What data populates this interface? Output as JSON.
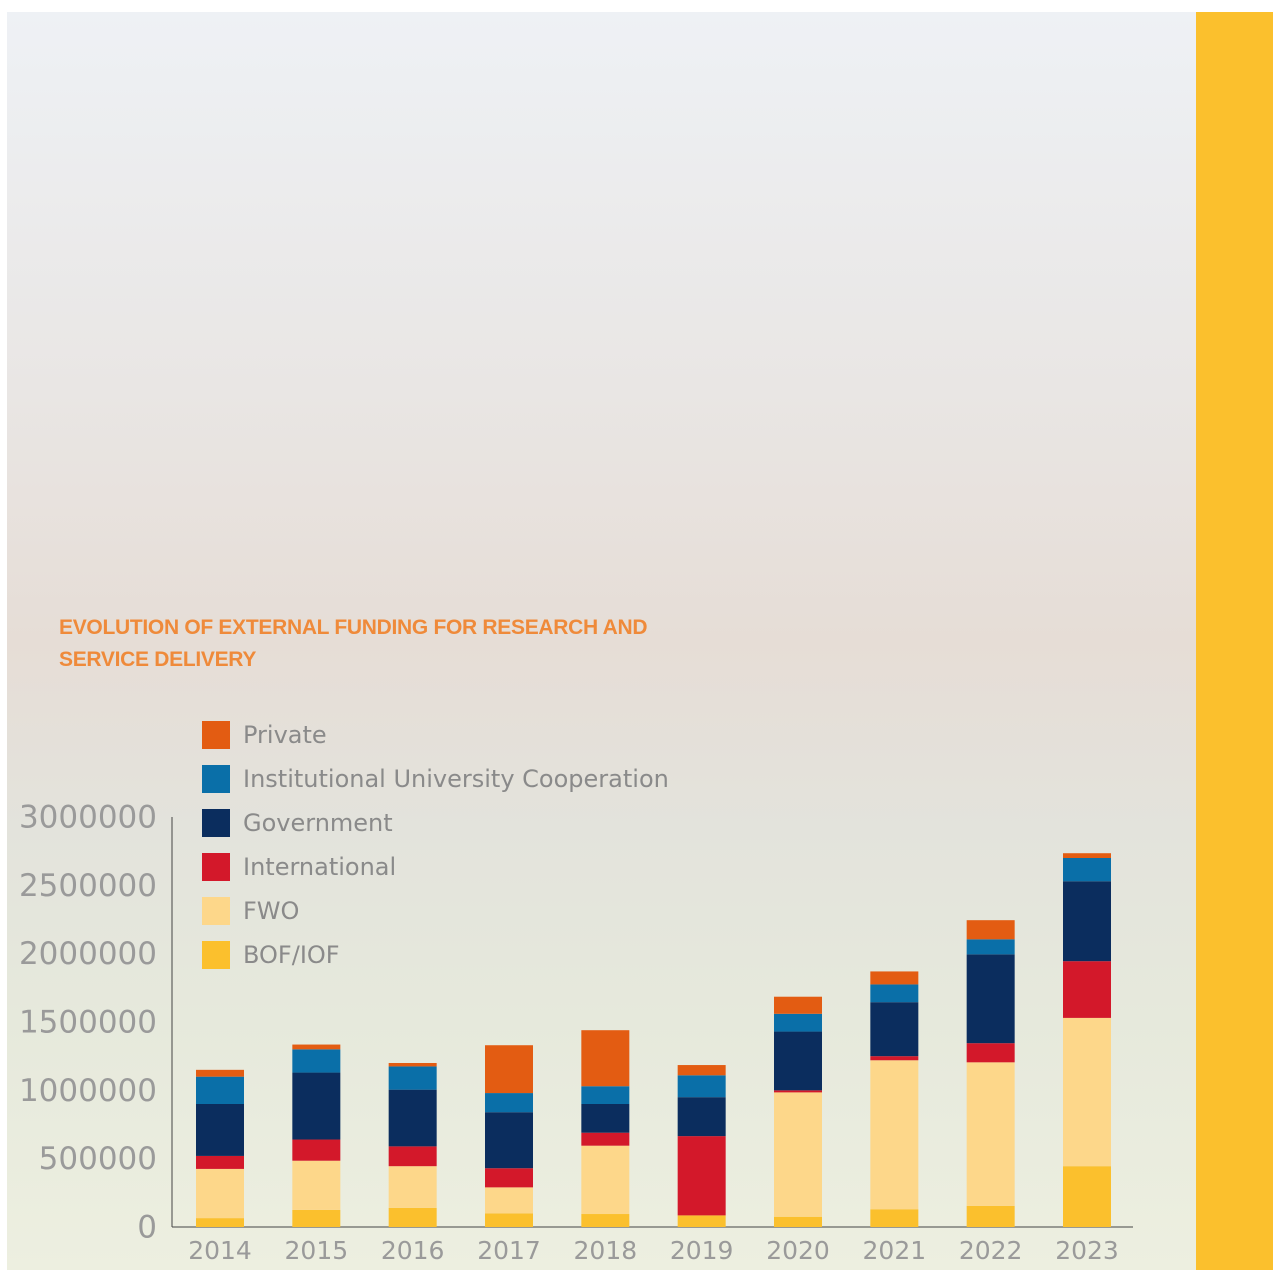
{
  "chart_data": {
    "type": "stacked-bar",
    "title": "EVOLUTION OF EXTERNAL FUNDING FOR RESEARCH AND SERVICE DELIVERY",
    "categories": [
      "2014",
      "2015",
      "2016",
      "2017",
      "2018",
      "2019",
      "2020",
      "2021",
      "2022",
      "2023"
    ],
    "series": [
      {
        "name": "BOF/IOF",
        "color": "#fbc02d",
        "values": [
          65000,
          125000,
          140000,
          100000,
          95000,
          85000,
          75000,
          130000,
          155000,
          445000
        ]
      },
      {
        "name": "FWO",
        "color": "#fdd78a",
        "values": [
          360000,
          360000,
          305000,
          190000,
          500000,
          0,
          910000,
          1090000,
          1050000,
          1085000
        ]
      },
      {
        "name": "International",
        "color": "#d3182a",
        "values": [
          95000,
          155000,
          145000,
          140000,
          95000,
          580000,
          15000,
          30000,
          140000,
          415000
        ]
      },
      {
        "name": "Government",
        "color": "#0b2d5e",
        "values": [
          380000,
          490000,
          415000,
          410000,
          210000,
          285000,
          430000,
          395000,
          650000,
          585000
        ]
      },
      {
        "name": "Institutional University Cooperation",
        "color": "#0a6fa8",
        "values": [
          200000,
          170000,
          170000,
          140000,
          130000,
          160000,
          130000,
          130000,
          110000,
          170000
        ]
      },
      {
        "name": "Private",
        "color": "#e35c12",
        "values": [
          50000,
          35000,
          25000,
          350000,
          410000,
          75000,
          125000,
          95000,
          140000,
          35000
        ]
      }
    ],
    "ylim": [
      0,
      3000000
    ],
    "yticks": [
      0,
      500000,
      1000000,
      1500000,
      2000000,
      2500000,
      3000000
    ],
    "grid": false
  }
}
